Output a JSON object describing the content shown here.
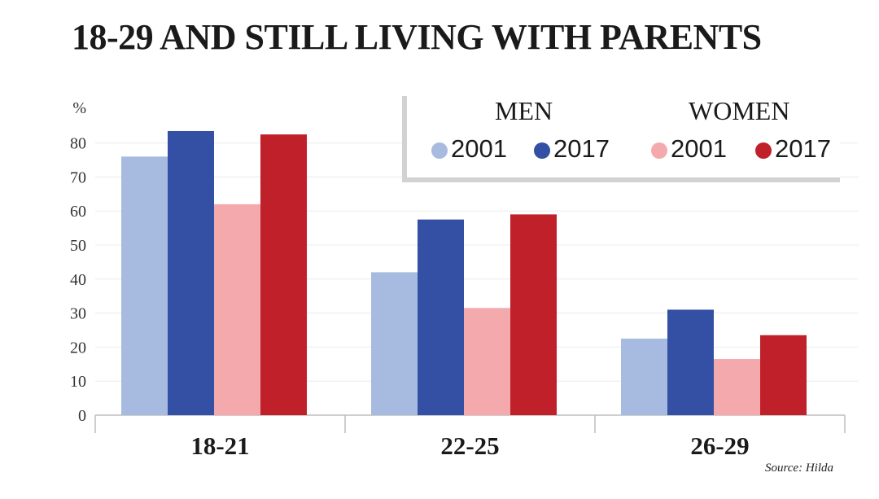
{
  "chart_data": {
    "type": "bar",
    "title": "18-29 AND STILL LIVING WITH PARENTS",
    "ylabel": "%",
    "xlabel": "",
    "categories": [
      "18-21",
      "22-25",
      "26-29"
    ],
    "ylim": [
      0,
      90
    ],
    "yticks": [
      0,
      10,
      20,
      30,
      40,
      50,
      60,
      70,
      80
    ],
    "grid": true,
    "legend_position": "top-right",
    "legend_groups": [
      "MEN",
      "WOMEN"
    ],
    "series": [
      {
        "name": "2001",
        "group": "MEN",
        "values": [
          76,
          42,
          22.5
        ],
        "color": "#a7bbe0"
      },
      {
        "name": "2017",
        "group": "MEN",
        "values": [
          83.5,
          57.5,
          31
        ],
        "color": "#3350a5"
      },
      {
        "name": "2001",
        "group": "WOMEN",
        "values": [
          62,
          31.5,
          16.5
        ],
        "color": "#f4aaad"
      },
      {
        "name": "2017",
        "group": "WOMEN",
        "values": [
          82.5,
          59,
          23.5
        ],
        "color": "#c0202a"
      }
    ],
    "source": "Source: Hilda"
  }
}
